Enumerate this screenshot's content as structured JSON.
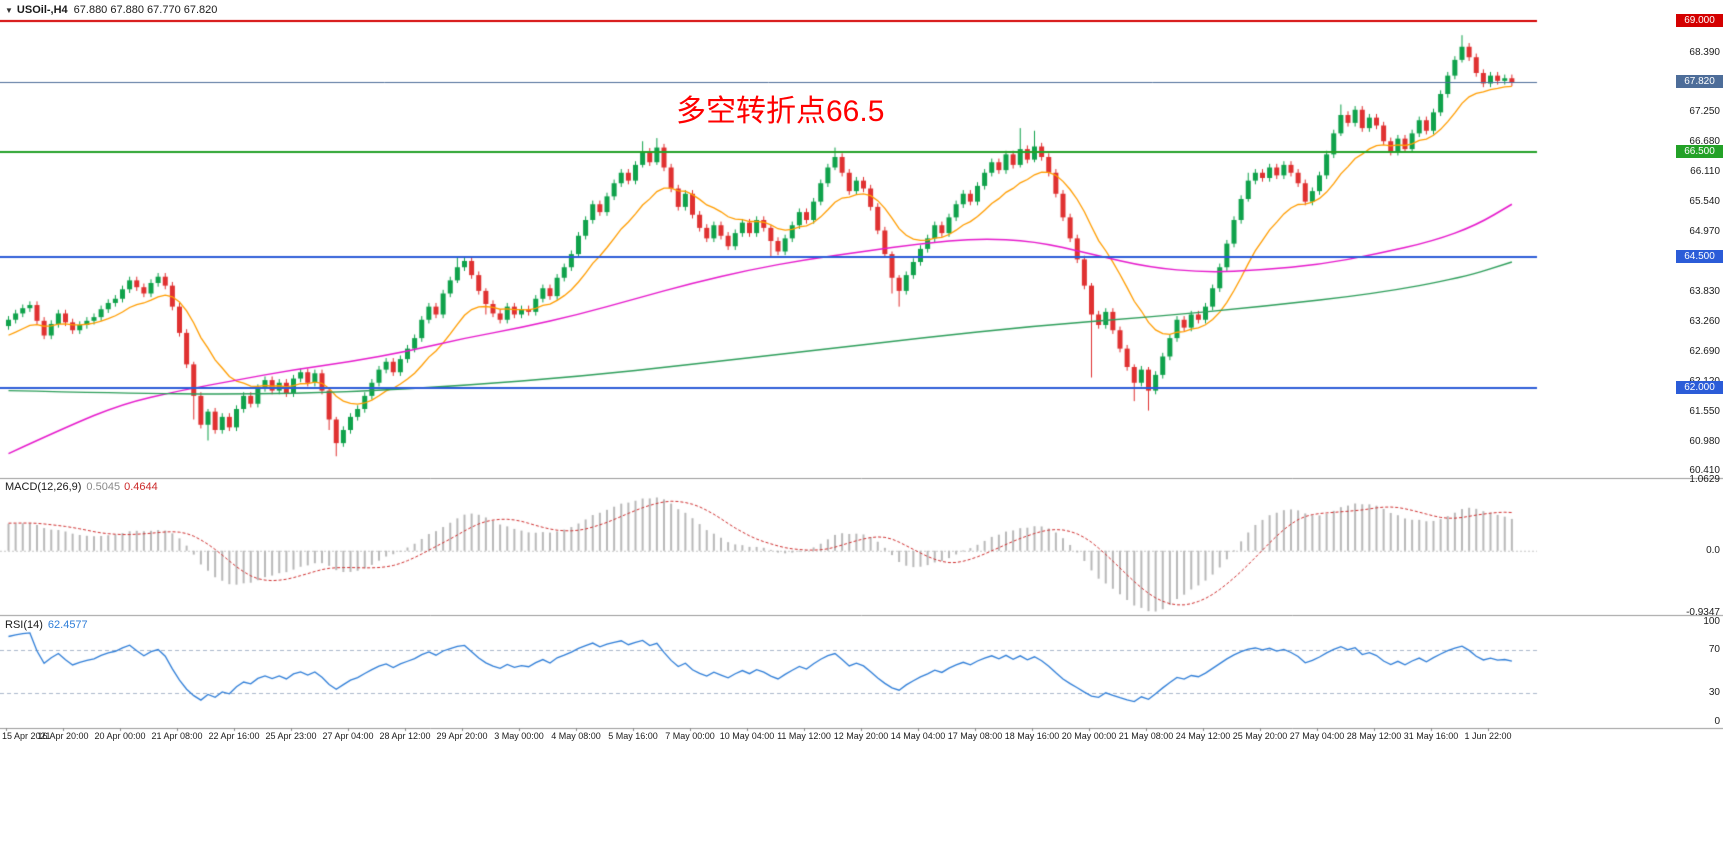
{
  "header": {
    "symbol": "USOil-,H4",
    "ohlc": "67.880 67.880 67.770 67.820"
  },
  "annotation": {
    "text": "多空转折点66.5",
    "color": "#ff0000"
  },
  "indicators": {
    "macd": {
      "label": "MACD(12,26,9)",
      "value_main": "0.5045",
      "value_signal": "0.4644",
      "hist_color": "#b9b9b9",
      "signal_color": "#d03030",
      "axis": [
        {
          "label": "1.0629",
          "value": 1.0629
        },
        {
          "label": "0.0",
          "value": 0
        },
        {
          "label": "-0.9347",
          "value": -0.9347
        }
      ]
    },
    "rsi": {
      "label": "RSI(14)",
      "value": "62.4577",
      "line_color": "#2f7ed8",
      "axis": [
        {
          "label": "100",
          "value": 100
        },
        {
          "label": "70",
          "value": 70
        },
        {
          "label": "30",
          "value": 30
        },
        {
          "label": "0",
          "value": 0
        }
      ],
      "level_high": 70,
      "level_low": 30
    }
  },
  "chart_data": {
    "type": "candlestick",
    "symbol": "USOil-",
    "timeframe": "H4",
    "title": "USOil-,H4",
    "ohlc_readout": {
      "open": 67.88,
      "high": 67.88,
      "low": 67.77,
      "close": 67.82
    },
    "price_axis_range": [
      60.3,
      69.2
    ],
    "macd_range": [
      -0.9347,
      1.0629
    ],
    "up_color": "#0fa24b",
    "down_color": "#e03131",
    "grid": false,
    "first_open": 63.18,
    "wick_default": 0.07,
    "preroll_closes": [
      61.2,
      61.3,
      61.25,
      61.4,
      61.55,
      61.5,
      61.65,
      61.8,
      61.75,
      61.9,
      62.05,
      62.0,
      62.15,
      62.3,
      62.25,
      62.4,
      62.55,
      62.5,
      62.65,
      62.8,
      62.75,
      62.9,
      63.05,
      63.0,
      63.1,
      63.2,
      63.15,
      63.25,
      63.2,
      63.25
    ],
    "closes": [
      63.3,
      63.42,
      63.52,
      63.58,
      63.28,
      63.0,
      63.22,
      63.42,
      63.25,
      63.1,
      63.2,
      63.28,
      63.35,
      63.5,
      63.62,
      63.7,
      63.88,
      64.05,
      63.92,
      63.8,
      64.0,
      64.12,
      63.95,
      63.55,
      63.05,
      62.45,
      61.85,
      61.3,
      61.55,
      61.2,
      61.45,
      61.25,
      61.6,
      61.85,
      61.7,
      62.0,
      62.15,
      61.95,
      62.1,
      61.9,
      62.18,
      62.3,
      62.1,
      62.28,
      61.95,
      61.4,
      60.95,
      61.2,
      61.45,
      61.6,
      61.85,
      62.1,
      62.35,
      62.5,
      62.3,
      62.55,
      62.75,
      62.95,
      63.3,
      63.55,
      63.4,
      63.8,
      64.05,
      64.3,
      64.42,
      64.15,
      63.85,
      63.6,
      63.42,
      63.3,
      63.55,
      63.4,
      63.5,
      63.45,
      63.7,
      63.9,
      63.75,
      64.1,
      64.3,
      64.55,
      64.9,
      65.2,
      65.5,
      65.35,
      65.65,
      65.9,
      66.1,
      65.95,
      66.25,
      66.5,
      66.3,
      66.58,
      66.2,
      65.8,
      65.45,
      65.7,
      65.3,
      65.05,
      64.85,
      65.1,
      64.9,
      64.7,
      64.95,
      65.15,
      64.95,
      65.2,
      65.05,
      64.8,
      64.6,
      64.85,
      65.1,
      65.35,
      65.2,
      65.55,
      65.9,
      66.2,
      66.4,
      66.1,
      65.75,
      65.95,
      65.8,
      65.45,
      65.0,
      64.55,
      64.1,
      63.85,
      64.15,
      64.4,
      64.65,
      64.85,
      65.1,
      64.95,
      65.25,
      65.5,
      65.7,
      65.55,
      65.85,
      66.1,
      66.3,
      66.15,
      66.45,
      66.25,
      66.55,
      66.35,
      66.6,
      66.4,
      66.1,
      65.7,
      65.25,
      64.85,
      64.45,
      63.95,
      63.4,
      63.2,
      63.45,
      63.1,
      62.75,
      62.4,
      62.1,
      62.35,
      61.95,
      62.25,
      62.6,
      62.95,
      63.3,
      63.15,
      63.4,
      63.3,
      63.55,
      63.9,
      64.3,
      64.75,
      65.2,
      65.6,
      65.95,
      66.1,
      66.0,
      66.2,
      66.05,
      66.25,
      66.1,
      65.9,
      65.55,
      65.75,
      66.05,
      66.45,
      66.85,
      67.2,
      67.05,
      67.3,
      66.95,
      67.15,
      67.0,
      66.7,
      66.5,
      66.75,
      66.55,
      66.85,
      67.1,
      66.9,
      67.25,
      67.6,
      67.95,
      68.25,
      68.5,
      68.3,
      68.0,
      67.8,
      67.95,
      67.85,
      67.9,
      67.82
    ],
    "wick_overrides": {
      "26": [
        0.05,
        0.45
      ],
      "28": [
        0.05,
        0.3
      ],
      "45": [
        0.05,
        0.2
      ],
      "46": [
        0.05,
        0.25
      ],
      "63": [
        0.18,
        0.05
      ],
      "67": [
        0.05,
        0.2
      ],
      "89": [
        0.2,
        0.05
      ],
      "91": [
        0.18,
        0.05
      ],
      "107": [
        0.05,
        0.3
      ],
      "116": [
        0.18,
        0.05
      ],
      "124": [
        0.05,
        0.3
      ],
      "125": [
        0.05,
        0.3
      ],
      "142": [
        0.4,
        0.05
      ],
      "144": [
        0.3,
        0.05
      ],
      "152": [
        0.05,
        1.2
      ],
      "158": [
        0.05,
        0.35
      ],
      "160": [
        0.05,
        0.38
      ],
      "174": [
        0.15,
        0.05
      ],
      "187": [
        0.2,
        0.05
      ],
      "204": [
        0.22,
        0.05
      ]
    },
    "moving_averages": [
      {
        "name": "ma-fast",
        "color": "#ff9d00",
        "type": "ema",
        "period": 13
      },
      {
        "name": "ma-medium",
        "color": "#e619cc",
        "points": [
          [
            0,
            60.75
          ],
          [
            8,
            61.25
          ],
          [
            16,
            61.7
          ],
          [
            24,
            61.95
          ],
          [
            32,
            62.15
          ],
          [
            40,
            62.35
          ],
          [
            48,
            62.5
          ],
          [
            56,
            62.7
          ],
          [
            64,
            62.95
          ],
          [
            72,
            63.15
          ],
          [
            80,
            63.4
          ],
          [
            88,
            63.7
          ],
          [
            96,
            64.0
          ],
          [
            104,
            64.25
          ],
          [
            112,
            64.45
          ],
          [
            120,
            64.6
          ],
          [
            128,
            64.75
          ],
          [
            136,
            64.85
          ],
          [
            144,
            64.8
          ],
          [
            152,
            64.55
          ],
          [
            160,
            64.3
          ],
          [
            168,
            64.2
          ],
          [
            176,
            64.25
          ],
          [
            184,
            64.35
          ],
          [
            192,
            64.55
          ],
          [
            200,
            64.8
          ],
          [
            206,
            65.1
          ],
          [
            211,
            65.5
          ]
        ]
      },
      {
        "name": "ma-slow",
        "color": "#2e9e5b",
        "points": [
          [
            0,
            61.95
          ],
          [
            16,
            61.9
          ],
          [
            32,
            61.88
          ],
          [
            48,
            61.92
          ],
          [
            64,
            62.05
          ],
          [
            80,
            62.22
          ],
          [
            96,
            62.45
          ],
          [
            112,
            62.7
          ],
          [
            128,
            62.95
          ],
          [
            144,
            63.18
          ],
          [
            160,
            63.35
          ],
          [
            176,
            63.55
          ],
          [
            192,
            63.8
          ],
          [
            204,
            64.1
          ],
          [
            211,
            64.4
          ]
        ]
      }
    ],
    "levels": [
      {
        "value": 69.0,
        "color": "#d40000",
        "width": 2
      },
      {
        "value": 66.5,
        "color": "#23a127",
        "width": 2
      },
      {
        "value": 64.5,
        "color": "#2b5cd8",
        "width": 2
      },
      {
        "value": 62.0,
        "color": "#2b5cd8",
        "width": 2
      }
    ],
    "current_price": {
      "value": 67.82,
      "label": "67.820",
      "color": "#4d6d99"
    },
    "price_ticks": [
      "68.390",
      "67.250",
      "66.680",
      "66.110",
      "65.540",
      "64.970",
      "63.830",
      "63.260",
      "62.690",
      "62.120",
      "61.550",
      "60.980",
      "60.410"
    ],
    "price_badges": [
      {
        "label": "69.000",
        "value": 69.0,
        "color": "#d40000"
      },
      {
        "label": "67.820",
        "value": 67.82,
        "color": "#4d6d99"
      },
      {
        "label": "66.500",
        "value": 66.5,
        "color": "#23a127"
      },
      {
        "label": "64.500",
        "value": 64.5,
        "color": "#2b5cd8"
      },
      {
        "label": "62.000",
        "value": 62.0,
        "color": "#2b5cd8"
      }
    ],
    "time_labels": [
      "15 Apr 2021",
      "16 Apr 20:00",
      "20 Apr 00:00",
      "21 Apr 08:00",
      "22 Apr 16:00",
      "25 Apr 23:00",
      "27 Apr 04:00",
      "28 Apr 12:00",
      "29 Apr 20:00",
      "3 May 00:00",
      "4 May 08:00",
      "5 May 16:00",
      "7 May 00:00",
      "10 May 04:00",
      "11 May 12:00",
      "12 May 20:00",
      "14 May 04:00",
      "17 May 08:00",
      "18 May 16:00",
      "20 May 00:00",
      "21 May 08:00",
      "24 May 12:00",
      "25 May 20:00",
      "27 May 04:00",
      "28 May 12:00",
      "31 May 16:00",
      "1 Jun 22:00"
    ]
  }
}
